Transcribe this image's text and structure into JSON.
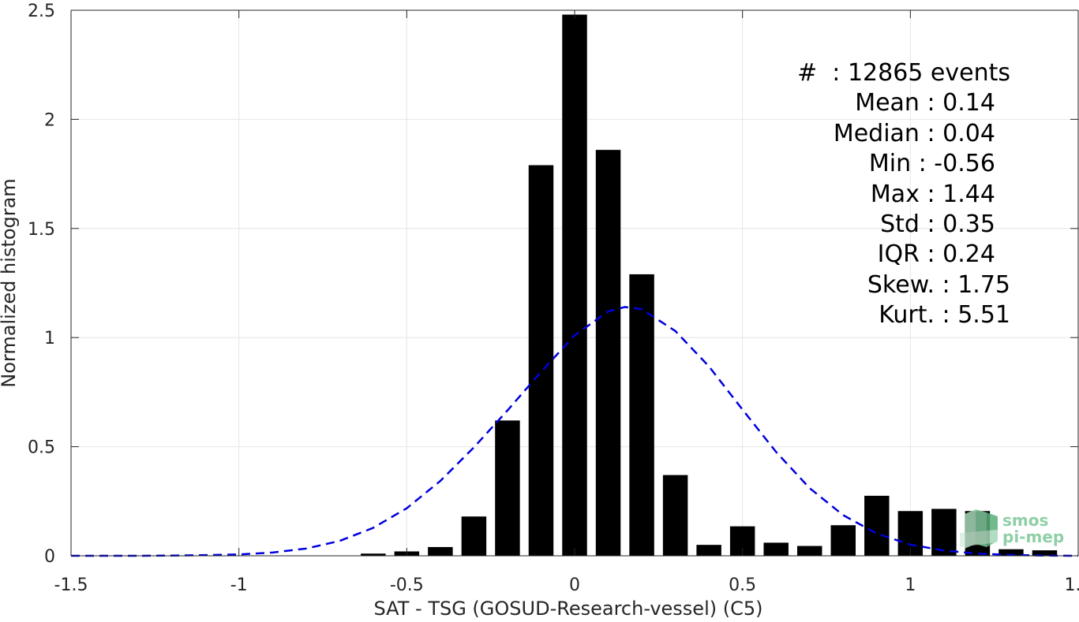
{
  "chart_data": {
    "type": "bar",
    "xlabel": "SAT - TSG (GOSUD-Research-vessel) (C5)",
    "ylabel": "Normalized histogram",
    "xlim": [
      -1.5,
      1.5
    ],
    "ylim": [
      0,
      2.5
    ],
    "xticks": [
      -1.5,
      -1,
      -0.5,
      0,
      0.5,
      1,
      1.5
    ],
    "xtick_labels": [
      "-1.5",
      "-1",
      "-0.5",
      "0",
      "0.5",
      "1",
      "1.5"
    ],
    "yticks": [
      0,
      0.5,
      1,
      1.5,
      2,
      2.5
    ],
    "ytick_labels": [
      "0",
      "0.5",
      "1",
      "1.5",
      "2",
      "2.5"
    ],
    "grid": true,
    "bar_color": "#000000",
    "fit_color": "#0000dd",
    "bars": {
      "x": [
        -0.6,
        -0.5,
        -0.4,
        -0.3,
        -0.2,
        -0.1,
        0.0,
        0.1,
        0.2,
        0.3,
        0.4,
        0.5,
        0.6,
        0.7,
        0.8,
        0.9,
        1.0,
        1.1,
        1.2,
        1.3,
        1.4
      ],
      "values": [
        0.01,
        0.02,
        0.04,
        0.18,
        0.62,
        1.79,
        2.48,
        1.86,
        1.29,
        0.37,
        0.05,
        0.135,
        0.06,
        0.045,
        0.14,
        0.275,
        0.205,
        0.215,
        0.205,
        0.03,
        0.025
      ]
    },
    "fit_curve": {
      "style": "dashed",
      "x": [
        -1.5,
        -1.4,
        -1.3,
        -1.2,
        -1.1,
        -1.0,
        -0.9,
        -0.8,
        -0.7,
        -0.6,
        -0.5,
        -0.4,
        -0.3,
        -0.2,
        -0.1,
        0.0,
        0.1,
        0.15,
        0.2,
        0.3,
        0.4,
        0.5,
        0.6,
        0.7,
        0.8,
        0.9,
        1.0,
        1.1,
        1.2,
        1.3,
        1.4,
        1.5
      ],
      "y": [
        0.0,
        0.0,
        0.0,
        0.001,
        0.003,
        0.006,
        0.015,
        0.033,
        0.068,
        0.128,
        0.218,
        0.343,
        0.497,
        0.666,
        0.843,
        1.01,
        1.12,
        1.14,
        1.13,
        1.03,
        0.868,
        0.67,
        0.476,
        0.31,
        0.186,
        0.102,
        0.051,
        0.024,
        0.01,
        0.004,
        0.001,
        0.0
      ]
    },
    "annotations": [
      "#  : 12865 events",
      "Mean : 0.14  ",
      "Median : 0.04  ",
      "Min : -0.56  ",
      "Max : 1.44  ",
      "Std : 0.35  ",
      "IQR : 0.24  ",
      "Skew. : 1.75",
      "Kurt. : 5.51"
    ],
    "logo": [
      "smos",
      "pi-mep"
    ]
  }
}
